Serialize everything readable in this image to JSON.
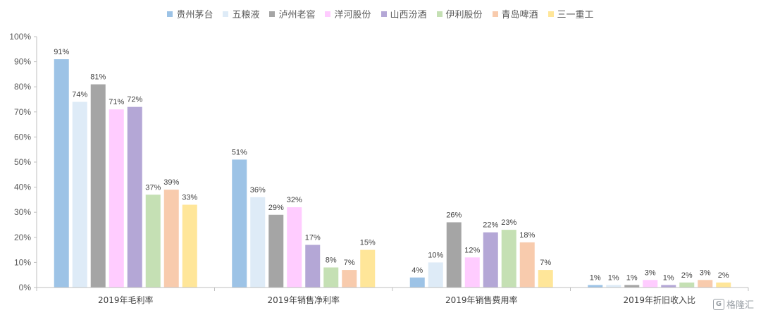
{
  "watermark": "格隆汇",
  "chart_data": {
    "type": "bar",
    "categories": [
      "2019年毛利率",
      "2019年销售净利率",
      "2019年销售费用率",
      "2019年折旧收入比"
    ],
    "ylim": [
      0,
      100
    ],
    "yticks": [
      "0%",
      "10%",
      "20%",
      "30%",
      "40%",
      "50%",
      "60%",
      "70%",
      "80%",
      "90%",
      "100%"
    ],
    "legend_position": "top",
    "grid": false,
    "series": [
      {
        "name": "贵州茅台",
        "color": "#9dc3e6",
        "values": [
          91,
          51,
          4,
          1
        ]
      },
      {
        "name": "五粮液",
        "color": "#deebf7",
        "values": [
          74,
          36,
          10,
          1
        ]
      },
      {
        "name": "泸州老窖",
        "color": "#a5a5a5",
        "values": [
          81,
          29,
          26,
          1
        ]
      },
      {
        "name": "洋河股份",
        "color": "#ffccff",
        "values": [
          71,
          32,
          12,
          3
        ]
      },
      {
        "name": "山西汾酒",
        "color": "#b4a7d6",
        "values": [
          72,
          17,
          22,
          1
        ]
      },
      {
        "name": "伊利股份",
        "color": "#c5e0b4",
        "values": [
          37,
          8,
          23,
          2
        ]
      },
      {
        "name": "青岛啤酒",
        "color": "#f8cbad",
        "values": [
          39,
          7,
          18,
          3
        ]
      },
      {
        "name": "三一重工",
        "color": "#ffe699",
        "values": [
          33,
          15,
          7,
          2
        ]
      }
    ]
  }
}
